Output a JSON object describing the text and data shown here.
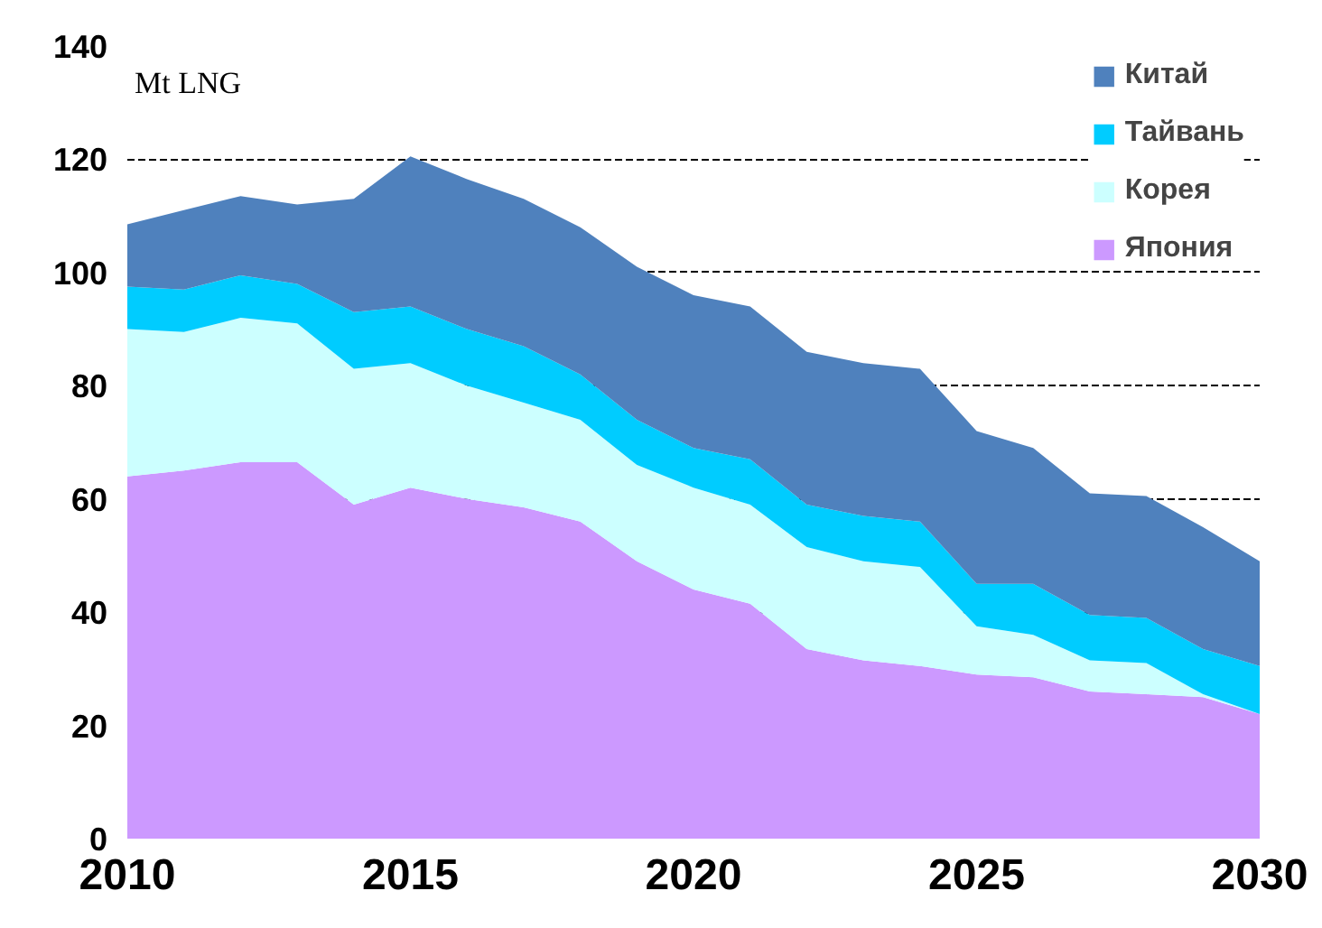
{
  "chart_data": {
    "type": "area",
    "stacked": true,
    "ylabel": "Mt LNG",
    "x": [
      2010,
      2011,
      2012,
      2013,
      2014,
      2015,
      2016,
      2017,
      2018,
      2019,
      2020,
      2021,
      2022,
      2023,
      2024,
      2025,
      2026,
      2027,
      2028,
      2029,
      2030
    ],
    "series": [
      {
        "name": "Япония",
        "color": "#cc99ff",
        "values": [
          64,
          65,
          66.5,
          66.5,
          59,
          62,
          60,
          58.5,
          56,
          49,
          44,
          41.5,
          33.5,
          31.5,
          30.5,
          29,
          28.5,
          26,
          25.5,
          25,
          22
        ]
      },
      {
        "name": "Корея",
        "color": "#ccffff",
        "values": [
          26,
          24.5,
          25.5,
          24.5,
          24,
          22,
          20,
          18.5,
          18,
          17,
          18,
          17.5,
          18,
          17.5,
          17.5,
          8.5,
          7.5,
          5.5,
          5.5,
          0.5,
          0
        ]
      },
      {
        "name": "Тайвань",
        "color": "#00ccff",
        "values": [
          7.5,
          7.5,
          7.5,
          7,
          10,
          10,
          10,
          10,
          8,
          8,
          7,
          8,
          7.5,
          8,
          8,
          7.5,
          9,
          8,
          8,
          8,
          8.5
        ]
      },
      {
        "name": "Китай",
        "color": "#4f81bd",
        "values": [
          11,
          14,
          14,
          14,
          20,
          26.5,
          26.5,
          26,
          26,
          27,
          27,
          27,
          27,
          27,
          27,
          27,
          24,
          21.5,
          21.5,
          21.5,
          18.5
        ]
      }
    ],
    "xlim": [
      2010,
      2030
    ],
    "xticks": [
      2010,
      2015,
      2020,
      2025,
      2030
    ],
    "ylim": [
      0,
      140
    ],
    "yticks": [
      0,
      20,
      40,
      60,
      80,
      100,
      120,
      140
    ],
    "grid": "y",
    "line_style": "dashed",
    "legend": "top right"
  }
}
